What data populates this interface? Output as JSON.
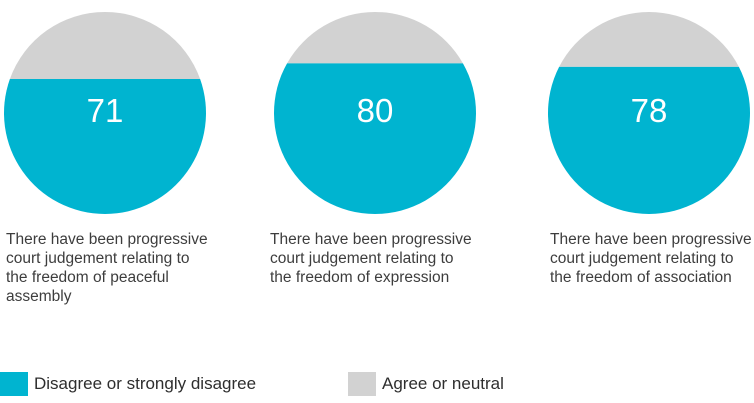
{
  "chart_data": [
    {
      "type": "pie",
      "center_label": "71",
      "caption": "There have been progressive court judgement relating to the freedom of peaceful assembly",
      "slices": [
        {
          "label": "Disagree or strongly disagree",
          "value": 71
        },
        {
          "label": "Agree or neutral",
          "value": 29
        }
      ]
    },
    {
      "type": "pie",
      "center_label": "80",
      "caption": "There have been progressive court judgement relating to the freedom of expression",
      "slices": [
        {
          "label": "Disagree or strongly disagree",
          "value": 80
        },
        {
          "label": "Agree or neutral",
          "value": 20
        }
      ]
    },
    {
      "type": "pie",
      "center_label": "78",
      "caption": "There have been progressive court judgement relating to the freedom of association",
      "slices": [
        {
          "label": "Disagree or strongly disagree",
          "value": 78
        },
        {
          "label": "Agree or neutral",
          "value": 22
        }
      ]
    }
  ],
  "legend": [
    {
      "label": "Disagree or strongly disagree",
      "color": "#00b4d0"
    },
    {
      "label": "Agree or neutral",
      "color": "#d2d2d2"
    }
  ]
}
